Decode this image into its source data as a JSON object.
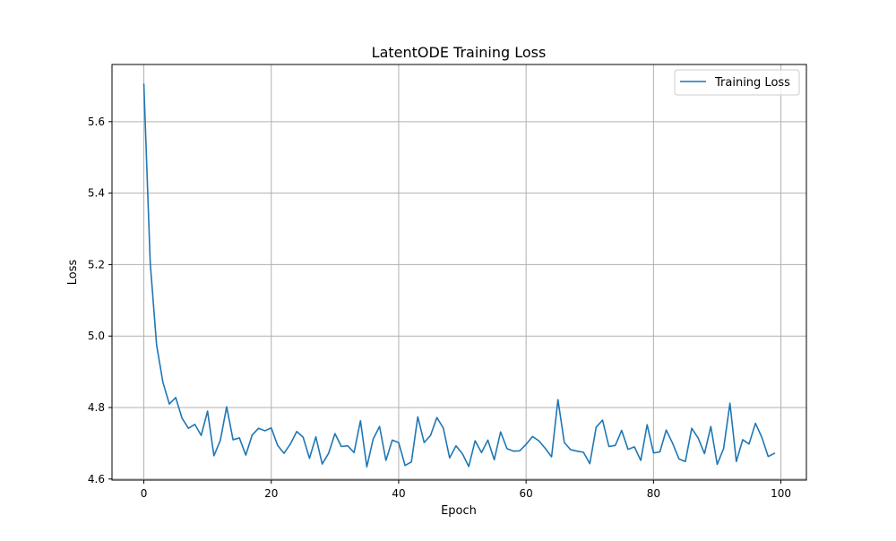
{
  "chart_data": {
    "type": "line",
    "title": "LatentODE Training Loss",
    "xlabel": "Epoch",
    "ylabel": "Loss",
    "xlim": [
      -5,
      104
    ],
    "ylim": [
      4.597,
      5.76
    ],
    "xticks": [
      0,
      20,
      40,
      60,
      80,
      100
    ],
    "yticks": [
      4.6,
      4.8,
      5.0,
      5.2,
      5.4,
      5.6
    ],
    "xtick_labels": [
      "0",
      "20",
      "40",
      "60",
      "80",
      "100"
    ],
    "ytick_labels": [
      "4.6",
      "4.8",
      "5.0",
      "5.2",
      "5.4",
      "5.6"
    ],
    "grid": true,
    "legend_position": "top-right",
    "series": [
      {
        "name": "Training Loss",
        "color": "#1f77b4",
        "x": [
          0,
          1,
          2,
          3,
          4,
          5,
          6,
          7,
          8,
          9,
          10,
          11,
          12,
          13,
          14,
          15,
          16,
          17,
          18,
          19,
          20,
          21,
          22,
          23,
          24,
          25,
          26,
          27,
          28,
          29,
          30,
          31,
          32,
          33,
          34,
          35,
          36,
          37,
          38,
          39,
          40,
          41,
          42,
          43,
          44,
          45,
          46,
          47,
          48,
          49,
          50,
          51,
          52,
          53,
          54,
          55,
          56,
          57,
          58,
          59,
          60,
          61,
          62,
          63,
          64,
          65,
          66,
          67,
          68,
          69,
          70,
          71,
          72,
          73,
          74,
          75,
          76,
          77,
          78,
          79,
          80,
          81,
          82,
          83,
          84,
          85,
          86,
          87,
          88,
          89,
          90,
          91,
          92,
          93,
          94,
          95,
          96,
          97,
          98,
          99
        ],
        "y": [
          5.705,
          5.205,
          4.975,
          4.87,
          4.81,
          4.828,
          4.77,
          4.742,
          4.753,
          4.722,
          4.79,
          4.665,
          4.708,
          4.802,
          4.71,
          4.715,
          4.667,
          4.723,
          4.742,
          4.735,
          4.743,
          4.694,
          4.672,
          4.698,
          4.733,
          4.717,
          4.658,
          4.718,
          4.642,
          4.672,
          4.727,
          4.691,
          4.693,
          4.674,
          4.763,
          4.634,
          4.712,
          4.747,
          4.652,
          4.709,
          4.702,
          4.638,
          4.648,
          4.774,
          4.702,
          4.722,
          4.772,
          4.743,
          4.659,
          4.693,
          4.671,
          4.635,
          4.707,
          4.674,
          4.709,
          4.654,
          4.732,
          4.685,
          4.678,
          4.679,
          4.697,
          4.719,
          4.707,
          4.686,
          4.662,
          4.822,
          4.702,
          4.682,
          4.678,
          4.675,
          4.643,
          4.745,
          4.765,
          4.691,
          4.694,
          4.736,
          4.683,
          4.69,
          4.652,
          4.752,
          4.673,
          4.676,
          4.737,
          4.7,
          4.656,
          4.649,
          4.742,
          4.715,
          4.671,
          4.747,
          4.641,
          4.685,
          4.812,
          4.649,
          4.71,
          4.698,
          4.756,
          4.717,
          4.663,
          4.672
        ]
      }
    ]
  }
}
